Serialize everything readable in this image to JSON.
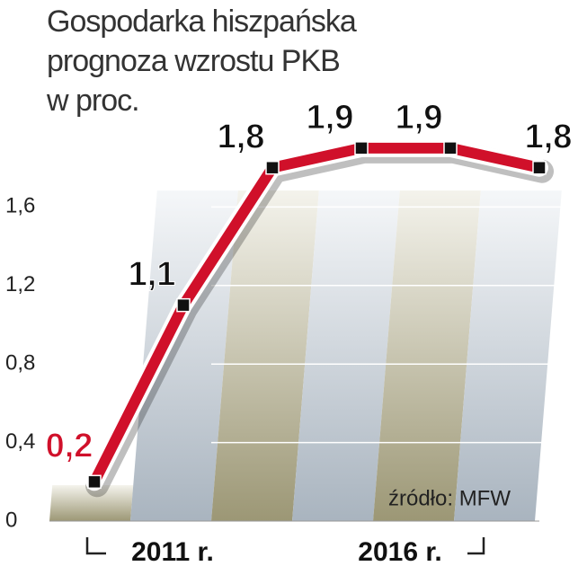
{
  "chart_data": {
    "type": "line",
    "title": "Gospodarka hiszpańska prognoza wzrostu PKB w proc.",
    "categories": [
      "2011 r.",
      null,
      null,
      null,
      null,
      "2016 r."
    ],
    "values": [
      0.2,
      1.1,
      1.8,
      1.9,
      1.9,
      1.8
    ],
    "value_labels": [
      "0,2",
      "1,1",
      "1,8",
      "1,9",
      "1,9",
      "1,8"
    ],
    "value_label_colors": [
      "#d0102a",
      "#111111",
      "#111111",
      "#111111",
      "#111111",
      "#111111"
    ],
    "color": "#d0102a",
    "ylim": [
      0,
      2
    ],
    "yticks": [
      {
        "value": 0,
        "label": "0"
      },
      {
        "value": 0.4,
        "label": "0,4"
      },
      {
        "value": 0.8,
        "label": "0,8"
      },
      {
        "value": 1.2,
        "label": "1,2"
      },
      {
        "value": 1.6,
        "label": "1,6"
      }
    ],
    "grid": true,
    "source": "źródło: MFW"
  }
}
